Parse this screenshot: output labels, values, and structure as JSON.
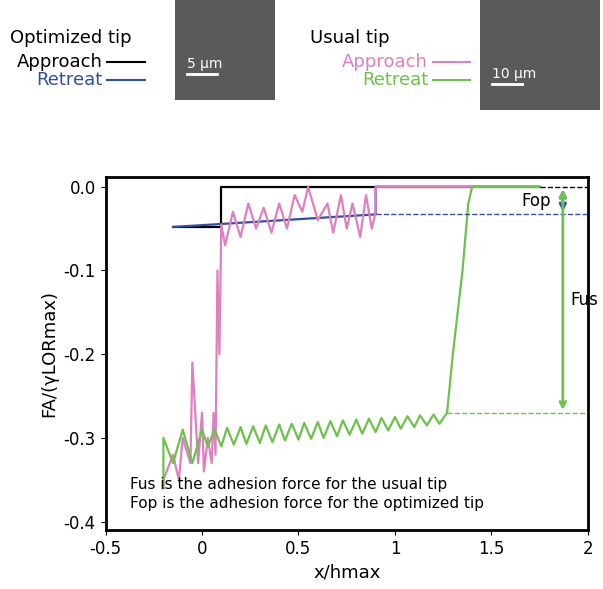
{
  "chart_data": {
    "type": "line",
    "xlabel": "x/hmax",
    "ylabel": "FA/(γLORmax)",
    "xlim": [
      -0.5,
      2
    ],
    "ylim": [
      -0.41,
      0.012
    ],
    "xticks": [
      -0.5,
      0,
      0.5,
      1,
      1.5,
      2
    ],
    "yticks": [
      0.0,
      -0.1,
      -0.2,
      -0.3,
      -0.4
    ],
    "groups": [
      {
        "title": "Optimized tip",
        "scale_bar": "5 µm"
      },
      {
        "title": "Usual tip",
        "scale_bar": "10 µm"
      }
    ],
    "series": [
      {
        "name": "Approach",
        "group": "Optimized tip",
        "color": "#000000",
        "x": [
          1.75,
          0.1,
          0.1,
          -0.15
        ],
        "values": [
          0.0,
          0.0,
          -0.048,
          -0.048
        ]
      },
      {
        "name": "Retreat",
        "group": "Optimized tip",
        "color": "#2e4fa3",
        "x": [
          -0.15,
          0.9,
          0.9,
          1.75
        ],
        "values": [
          -0.048,
          -0.033,
          0.0,
          0.0
        ]
      },
      {
        "name": "Approach",
        "group": "Usual tip",
        "color": "#e07fbf",
        "x": [
          1.75,
          0.9,
          0.9,
          0.88,
          0.85,
          0.82,
          0.78,
          0.75,
          0.72,
          0.68,
          0.65,
          0.6,
          0.55,
          0.52,
          0.48,
          0.44,
          0.4,
          0.36,
          0.32,
          0.28,
          0.24,
          0.2,
          0.16,
          0.12,
          0.1,
          0.09,
          0.08,
          0.07,
          0.06,
          0.05,
          0.03,
          0.01,
          0.0,
          -0.02,
          -0.05,
          -0.06,
          -0.1,
          -0.12,
          -0.15,
          -0.2,
          -0.2
        ],
        "values": [
          0.0,
          0.0,
          -0.03,
          -0.05,
          -0.01,
          -0.06,
          -0.02,
          -0.05,
          -0.01,
          -0.055,
          -0.02,
          -0.04,
          0.0,
          -0.03,
          -0.01,
          -0.05,
          -0.02,
          -0.055,
          -0.025,
          -0.05,
          -0.02,
          -0.06,
          -0.03,
          -0.07,
          -0.045,
          -0.2,
          -0.1,
          -0.32,
          -0.27,
          -0.33,
          -0.3,
          -0.34,
          -0.27,
          -0.33,
          -0.21,
          -0.33,
          -0.3,
          -0.35,
          -0.32,
          -0.35,
          -0.36
        ]
      },
      {
        "name": "Retreat",
        "group": "Usual tip",
        "color": "#6cc24a",
        "x": [
          -0.2,
          -0.2,
          -0.15,
          -0.1,
          -0.05,
          0.0,
          0.03,
          0.065,
          0.1,
          0.13,
          0.165,
          0.2,
          0.23,
          0.265,
          0.3,
          0.33,
          0.365,
          0.4,
          0.43,
          0.465,
          0.5,
          0.53,
          0.565,
          0.6,
          0.63,
          0.665,
          0.7,
          0.73,
          0.765,
          0.8,
          0.83,
          0.865,
          0.9,
          0.93,
          0.965,
          1.0,
          1.03,
          1.065,
          1.1,
          1.13,
          1.165,
          1.2,
          1.23,
          1.27,
          1.3,
          1.35,
          1.38,
          1.4,
          1.75
        ],
        "values": [
          -0.36,
          -0.3,
          -0.33,
          -0.29,
          -0.33,
          -0.29,
          -0.31,
          -0.29,
          -0.31,
          -0.288,
          -0.308,
          -0.287,
          -0.307,
          -0.286,
          -0.306,
          -0.285,
          -0.305,
          -0.284,
          -0.303,
          -0.283,
          -0.302,
          -0.282,
          -0.301,
          -0.281,
          -0.3,
          -0.28,
          -0.298,
          -0.279,
          -0.296,
          -0.278,
          -0.295,
          -0.277,
          -0.293,
          -0.276,
          -0.291,
          -0.275,
          -0.289,
          -0.274,
          -0.287,
          -0.273,
          -0.285,
          -0.272,
          -0.283,
          -0.27,
          -0.2,
          -0.1,
          -0.02,
          0.0,
          0.0
        ]
      }
    ],
    "reference_lines": [
      {
        "y": 0.0,
        "x": [
          1.75,
          2
        ],
        "color": "#000000"
      },
      {
        "y": -0.033,
        "x": [
          0.9,
          2
        ],
        "color": "#2e4fa3"
      },
      {
        "y": -0.27,
        "x": [
          1.27,
          2
        ],
        "color": "#6cc24a"
      }
    ],
    "force_markers": [
      {
        "label": "Fop",
        "x": 1.87,
        "top": 0.0,
        "bottom": -0.033,
        "color": "#2e4fa3",
        "side": "left"
      },
      {
        "label": "Fus",
        "x": 1.87,
        "top": 0.0,
        "bottom": -0.27,
        "color": "#6cc24a",
        "side": "right"
      }
    ],
    "notes": [
      "Fus is the adhesion force for the usual tip",
      "Fop is the adhesion force for the optimized tip"
    ]
  }
}
